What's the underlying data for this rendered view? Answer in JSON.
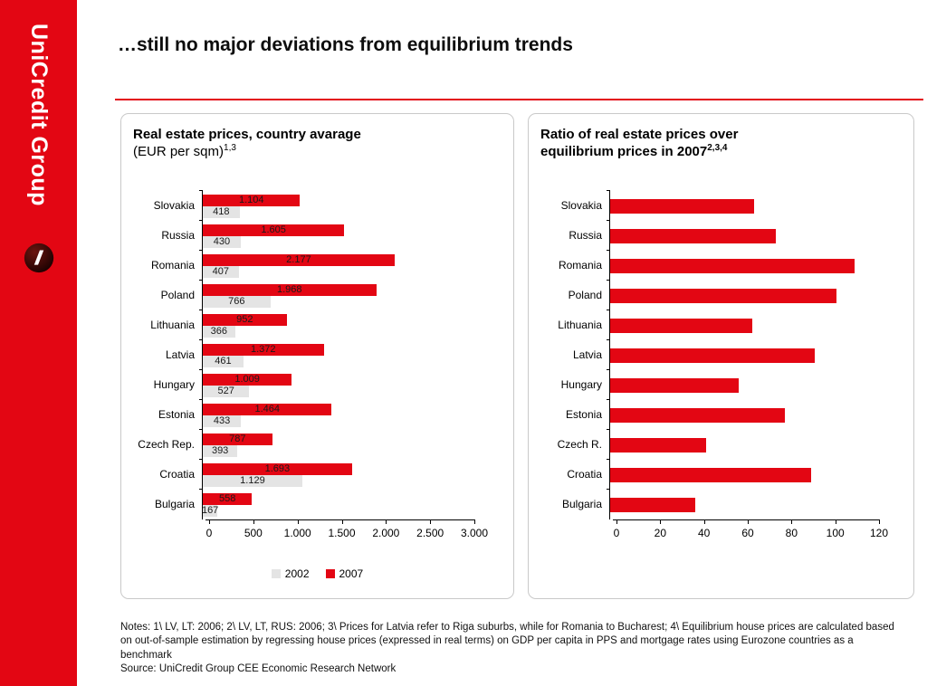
{
  "sidebar": {
    "brand": "UniCredit Group"
  },
  "header": {
    "title": "…still no major deviations from equilibrium trends"
  },
  "accent_color": "#e30613",
  "chart_data": [
    {
      "type": "bar",
      "orientation": "horizontal",
      "title": "Real estate prices, country avarage",
      "subtitle": "(EUR per sqm)",
      "subtitle_sup": "1,3",
      "categories": [
        "Slovakia",
        "Russia",
        "Romania",
        "Poland",
        "Lithuania",
        "Latvia",
        "Hungary",
        "Estonia",
        "Czech Rep.",
        "Croatia",
        "Bulgaria"
      ],
      "series": [
        {
          "name": "2002",
          "color": "#e4e4e4",
          "values": [
            418,
            430,
            407,
            766,
            366,
            461,
            527,
            433,
            393,
            1129,
            167
          ],
          "labels": [
            "418",
            "430",
            "407",
            "766",
            "366",
            "461",
            "527",
            "433",
            "393",
            "1.129",
            "167"
          ]
        },
        {
          "name": "2007",
          "color": "#e30613",
          "values": [
            1104,
            1605,
            2177,
            1968,
            952,
            1372,
            1009,
            1464,
            787,
            1693,
            558
          ],
          "labels": [
            "1.104",
            "1.605",
            "2.177",
            "1.968",
            "952",
            "1.372",
            "1.009",
            "1.464",
            "787",
            "1.693",
            "558"
          ]
        }
      ],
      "xlim": [
        0,
        3000
      ],
      "xticks": [
        "0",
        "500",
        "1.000",
        "1.500",
        "2.000",
        "2.500",
        "3.000"
      ],
      "legend_position": "bottom",
      "grid": false
    },
    {
      "type": "bar",
      "orientation": "horizontal",
      "title_line1": "Ratio of real estate prices over",
      "title_line2": "equilibrium prices in 2007",
      "title_sup": "2,3,4",
      "categories": [
        "Slovakia",
        "Russia",
        "Romania",
        "Poland",
        "Lithuania",
        "Latvia",
        "Hungary",
        "Estonia",
        "Czech R.",
        "Croatia",
        "Bulgaria"
      ],
      "values": [
        66,
        76,
        112,
        104,
        65,
        94,
        59,
        80,
        44,
        92,
        39
      ],
      "color": "#e30613",
      "xlim": [
        0,
        120
      ],
      "xticks": [
        "0",
        "20",
        "40",
        "60",
        "80",
        "100",
        "120"
      ],
      "grid": false
    }
  ],
  "footer": {
    "notes": "Notes: 1\\ LV, LT: 2006; 2\\ LV, LT, RUS: 2006; 3\\ Prices for Latvia refer to Riga suburbs, while for Romania to Bucharest; 4\\ Equilibrium house prices are calculated based on out-of-sample estimation by regressing house prices (expressed in real terms) on GDP per capita in PPS and mortgage rates using Eurozone countries as a benchmark",
    "source": "Source: UniCredit Group CEE Economic Research Network"
  }
}
